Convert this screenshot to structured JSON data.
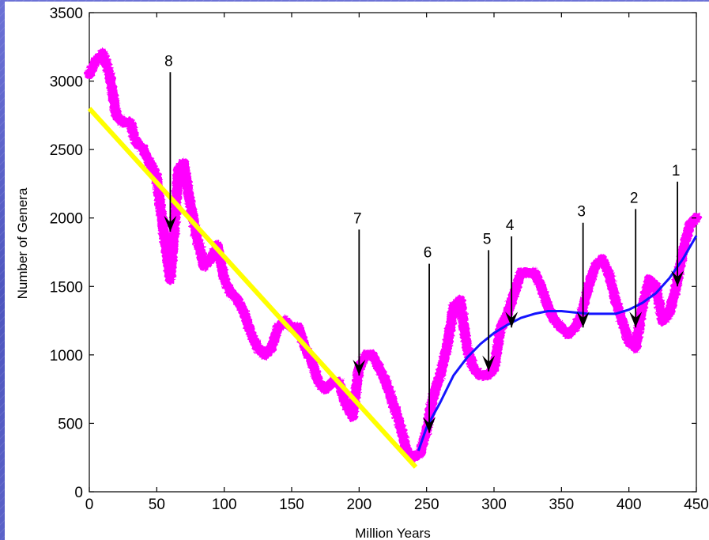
{
  "chart_data": {
    "type": "line",
    "title": "",
    "xlabel": "Million Years",
    "ylabel": "Number of Genera",
    "xlim": [
      0,
      450
    ],
    "ylim": [
      0,
      3500
    ],
    "xticks": [
      0,
      50,
      100,
      150,
      200,
      250,
      300,
      350,
      400,
      450
    ],
    "yticks": [
      0,
      500,
      1000,
      1500,
      2000,
      2500,
      3000,
      3500
    ],
    "grid": false,
    "legend": "none",
    "series": [
      {
        "color": "#ff00ff",
        "style": "thick noisy band",
        "x": [
          0,
          5,
          10,
          15,
          20,
          25,
          30,
          35,
          40,
          45,
          50,
          55,
          58,
          60,
          63,
          66,
          70,
          75,
          80,
          85,
          90,
          95,
          100,
          105,
          110,
          115,
          120,
          125,
          130,
          135,
          140,
          145,
          150,
          155,
          160,
          165,
          170,
          175,
          180,
          185,
          190,
          195,
          200,
          205,
          210,
          215,
          220,
          225,
          230,
          235,
          240,
          245,
          250,
          255,
          260,
          265,
          270,
          275,
          280,
          285,
          290,
          295,
          300,
          305,
          310,
          315,
          320,
          325,
          330,
          335,
          340,
          345,
          350,
          355,
          360,
          365,
          370,
          375,
          380,
          385,
          390,
          395,
          400,
          405,
          410,
          415,
          420,
          425,
          430,
          435,
          440,
          445,
          450
        ],
        "y": [
          3050,
          3150,
          3200,
          3050,
          2750,
          2700,
          2700,
          2550,
          2500,
          2400,
          2300,
          1900,
          1700,
          1550,
          1900,
          2350,
          2400,
          2100,
          1850,
          1650,
          1700,
          1800,
          1550,
          1450,
          1400,
          1300,
          1150,
          1050,
          1000,
          1050,
          1200,
          1250,
          1200,
          1200,
          1050,
          950,
          800,
          750,
          800,
          800,
          650,
          550,
          900,
          1000,
          1000,
          900,
          800,
          650,
          500,
          300,
          250,
          280,
          450,
          700,
          850,
          1050,
          1350,
          1400,
          1050,
          900,
          850,
          850,
          900,
          1200,
          1300,
          1450,
          1600,
          1600,
          1600,
          1500,
          1350,
          1250,
          1200,
          1150,
          1200,
          1300,
          1500,
          1650,
          1700,
          1600,
          1400,
          1250,
          1100,
          1050,
          1350,
          1550,
          1500,
          1250,
          1300,
          1500,
          1750,
          1950,
          2000
        ]
      },
      {
        "color": "#ffff00",
        "style": "linear trend",
        "x": [
          0,
          242
        ],
        "y": [
          2800,
          180
        ]
      },
      {
        "color": "#1414ff",
        "style": "smooth fit",
        "x": [
          244,
          250,
          260,
          270,
          280,
          290,
          300,
          310,
          320,
          330,
          340,
          350,
          360,
          370,
          380,
          390,
          400,
          410,
          420,
          430,
          440,
          450
        ],
        "y": [
          300,
          470,
          650,
          850,
          980,
          1080,
          1160,
          1220,
          1270,
          1300,
          1320,
          1320,
          1310,
          1300,
          1300,
          1300,
          1330,
          1380,
          1450,
          1560,
          1700,
          1870
        ]
      }
    ],
    "annotations": [
      {
        "label": "8",
        "x": 60,
        "y_tip": 1900,
        "y_top": 3100
      },
      {
        "label": "7",
        "x": 200,
        "y_tip": 850,
        "y_top": 1950
      },
      {
        "label": "6",
        "x": 252,
        "y_tip": 430,
        "y_top": 1700
      },
      {
        "label": "5",
        "x": 296,
        "y_tip": 880,
        "y_top": 1800
      },
      {
        "label": "4",
        "x": 313,
        "y_tip": 1200,
        "y_top": 1900
      },
      {
        "label": "3",
        "x": 366,
        "y_tip": 1200,
        "y_top": 2000
      },
      {
        "label": "2",
        "x": 405,
        "y_tip": 1200,
        "y_top": 2100
      },
      {
        "label": "1",
        "x": 436,
        "y_tip": 1500,
        "y_top": 2300
      }
    ]
  }
}
